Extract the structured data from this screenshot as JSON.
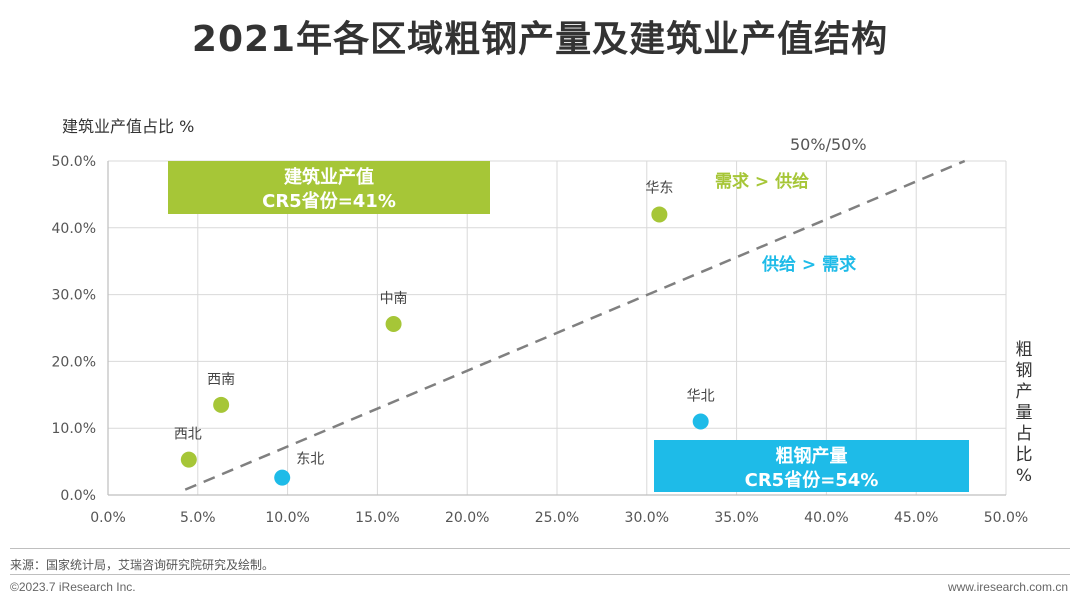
{
  "page": {
    "title": "2021年各区域粗钢产量及建筑业产值结构",
    "source": "来源：国家统计局，艾瑞咨询研究院研究及绘制。",
    "copyright": "©2023.7 iResearch Inc.",
    "website": "www.iresearch.com.cn"
  },
  "colors": {
    "green": "#a6c637",
    "blue": "#1ebbe8",
    "grid": "#d9d9d9",
    "dash": "#808080"
  },
  "chart_data": {
    "type": "scatter",
    "title": "2021年各区域粗钢产量及建筑业产值结构",
    "ylabel": "建筑业产值占比 %",
    "xlabel": "粗钢产量占比%",
    "xlim": [
      0,
      50
    ],
    "ylim": [
      0,
      50
    ],
    "xticks": [
      "0.0%",
      "5.0%",
      "10.0%",
      "15.0%",
      "20.0%",
      "25.0%",
      "30.0%",
      "35.0%",
      "40.0%",
      "45.0%",
      "50.0%"
    ],
    "yticks": [
      "0.0%",
      "10.0%",
      "20.0%",
      "30.0%",
      "40.0%",
      "50.0%"
    ],
    "grid": true,
    "points": [
      {
        "name": "西北",
        "x": 4.5,
        "y": 5.3,
        "group": "demand"
      },
      {
        "name": "西南",
        "x": 6.3,
        "y": 13.5,
        "group": "demand"
      },
      {
        "name": "中南",
        "x": 15.9,
        "y": 25.6,
        "group": "demand"
      },
      {
        "name": "华东",
        "x": 30.7,
        "y": 42.0,
        "group": "demand"
      },
      {
        "name": "东北",
        "x": 9.7,
        "y": 2.6,
        "group": "supply"
      },
      {
        "name": "华北",
        "x": 33.0,
        "y": 11.0,
        "group": "supply"
      }
    ],
    "reference_line": {
      "label": "50%/50%",
      "from": [
        4.3,
        0.8
      ],
      "to": [
        47.7,
        50
      ]
    },
    "annotations": {
      "demand_gt_supply": "需求 > 供给",
      "supply_gt_demand": "供给 > 需求"
    },
    "boxes": [
      {
        "line1": "建筑业产值",
        "line2": "CR5省份=41%",
        "color": "green"
      },
      {
        "line1": "粗钢产量",
        "line2": "CR5省份=54%",
        "color": "blue"
      }
    ]
  }
}
